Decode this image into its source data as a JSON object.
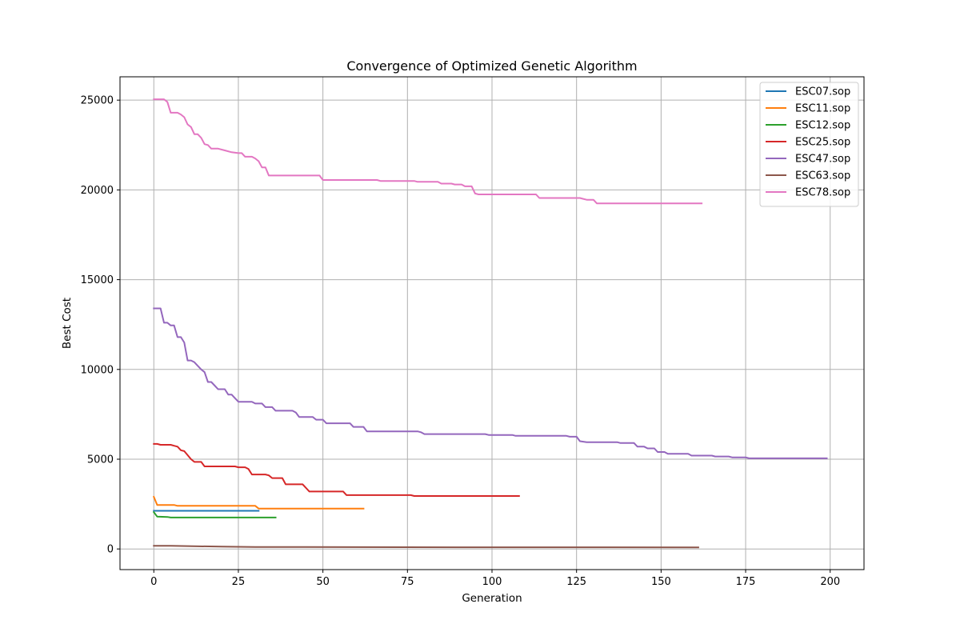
{
  "chart_data": {
    "type": "line",
    "title": "Convergence of Optimized Genetic Algorithm",
    "xlabel": "Generation",
    "ylabel": "Best Cost",
    "xlim": [
      -10,
      210
    ],
    "ylim": [
      -1150,
      26300
    ],
    "xticks": [
      0,
      25,
      50,
      75,
      100,
      125,
      150,
      175,
      200
    ],
    "yticks": [
      0,
      5000,
      10000,
      15000,
      20000,
      25000
    ],
    "grid": true,
    "legend_position": "top-right",
    "series": [
      {
        "name": "ESC07.sop",
        "color": "#1f77b4",
        "points": [
          [
            0,
            2125
          ],
          [
            31,
            2125
          ]
        ]
      },
      {
        "name": "ESC11.sop",
        "color": "#ff7f0e",
        "points": [
          [
            0,
            2900
          ],
          [
            1,
            2450
          ],
          [
            6,
            2450
          ],
          [
            7,
            2400
          ],
          [
            30,
            2400
          ],
          [
            31,
            2250
          ],
          [
            62,
            2250
          ]
        ]
      },
      {
        "name": "ESC12.sop",
        "color": "#2ca02c",
        "points": [
          [
            0,
            2050
          ],
          [
            1,
            1800
          ],
          [
            4,
            1780
          ],
          [
            5,
            1750
          ],
          [
            36,
            1750
          ]
        ]
      },
      {
        "name": "ESC25.sop",
        "color": "#d62728",
        "points": [
          [
            0,
            5850
          ],
          [
            1,
            5850
          ],
          [
            2,
            5800
          ],
          [
            5,
            5800
          ],
          [
            6,
            5750
          ],
          [
            7,
            5700
          ],
          [
            8,
            5500
          ],
          [
            9,
            5450
          ],
          [
            11,
            5000
          ],
          [
            12,
            4850
          ],
          [
            14,
            4850
          ],
          [
            15,
            4600
          ],
          [
            24,
            4600
          ],
          [
            25,
            4550
          ],
          [
            27,
            4550
          ],
          [
            28,
            4450
          ],
          [
            29,
            4150
          ],
          [
            33,
            4150
          ],
          [
            34,
            4100
          ],
          [
            35,
            3950
          ],
          [
            38,
            3950
          ],
          [
            39,
            3600
          ],
          [
            44,
            3600
          ],
          [
            46,
            3200
          ],
          [
            56,
            3200
          ],
          [
            57,
            3000
          ],
          [
            76,
            3000
          ],
          [
            77,
            2950
          ],
          [
            108,
            2950
          ]
        ]
      },
      {
        "name": "ESC47.sop",
        "color": "#9467bd",
        "points": [
          [
            0,
            13400
          ],
          [
            2,
            13400
          ],
          [
            3,
            12600
          ],
          [
            4,
            12600
          ],
          [
            5,
            12450
          ],
          [
            6,
            12450
          ],
          [
            7,
            11800
          ],
          [
            8,
            11800
          ],
          [
            9,
            11500
          ],
          [
            10,
            10500
          ],
          [
            11,
            10500
          ],
          [
            12,
            10400
          ],
          [
            13,
            10200
          ],
          [
            14,
            10000
          ],
          [
            15,
            9850
          ],
          [
            16,
            9300
          ],
          [
            17,
            9300
          ],
          [
            18,
            9100
          ],
          [
            19,
            8900
          ],
          [
            21,
            8900
          ],
          [
            22,
            8600
          ],
          [
            23,
            8600
          ],
          [
            24,
            8400
          ],
          [
            25,
            8200
          ],
          [
            29,
            8200
          ],
          [
            30,
            8100
          ],
          [
            32,
            8100
          ],
          [
            33,
            7900
          ],
          [
            35,
            7900
          ],
          [
            36,
            7700
          ],
          [
            41,
            7700
          ],
          [
            42,
            7600
          ],
          [
            43,
            7350
          ],
          [
            47,
            7350
          ],
          [
            48,
            7200
          ],
          [
            49,
            7200
          ],
          [
            50,
            7200
          ],
          [
            51,
            7000
          ],
          [
            58,
            7000
          ],
          [
            59,
            6800
          ],
          [
            62,
            6800
          ],
          [
            63,
            6550
          ],
          [
            78,
            6550
          ],
          [
            79,
            6500
          ],
          [
            80,
            6400
          ],
          [
            98,
            6400
          ],
          [
            99,
            6350
          ],
          [
            106,
            6350
          ],
          [
            107,
            6300
          ],
          [
            122,
            6300
          ],
          [
            123,
            6250
          ],
          [
            125,
            6250
          ],
          [
            126,
            6000
          ],
          [
            128,
            5950
          ],
          [
            137,
            5950
          ],
          [
            138,
            5900
          ],
          [
            142,
            5900
          ],
          [
            143,
            5700
          ],
          [
            145,
            5700
          ],
          [
            146,
            5600
          ],
          [
            148,
            5600
          ],
          [
            149,
            5400
          ],
          [
            151,
            5400
          ],
          [
            152,
            5300
          ],
          [
            158,
            5300
          ],
          [
            159,
            5200
          ],
          [
            165,
            5200
          ],
          [
            166,
            5150
          ],
          [
            170,
            5150
          ],
          [
            171,
            5100
          ],
          [
            175,
            5100
          ],
          [
            176,
            5050
          ],
          [
            199,
            5050
          ]
        ]
      },
      {
        "name": "ESC63.sop",
        "color": "#8c564b",
        "points": [
          [
            0,
            180
          ],
          [
            5,
            180
          ],
          [
            10,
            160
          ],
          [
            20,
            130
          ],
          [
            30,
            110
          ],
          [
            60,
            100
          ],
          [
            90,
            95
          ],
          [
            161,
            90
          ]
        ]
      },
      {
        "name": "ESC78.sop",
        "color": "#e377c2",
        "points": [
          [
            0,
            25050
          ],
          [
            3,
            25050
          ],
          [
            4,
            24900
          ],
          [
            5,
            24300
          ],
          [
            7,
            24300
          ],
          [
            8,
            24200
          ],
          [
            9,
            24050
          ],
          [
            10,
            23650
          ],
          [
            11,
            23500
          ],
          [
            12,
            23100
          ],
          [
            13,
            23100
          ],
          [
            14,
            22900
          ],
          [
            15,
            22550
          ],
          [
            16,
            22500
          ],
          [
            17,
            22300
          ],
          [
            19,
            22300
          ],
          [
            21,
            22200
          ],
          [
            23,
            22100
          ],
          [
            25,
            22050
          ],
          [
            26,
            22050
          ],
          [
            27,
            21850
          ],
          [
            29,
            21850
          ],
          [
            30,
            21750
          ],
          [
            31,
            21600
          ],
          [
            32,
            21250
          ],
          [
            33,
            21250
          ],
          [
            34,
            20800
          ],
          [
            49,
            20800
          ],
          [
            50,
            20550
          ],
          [
            56,
            20550
          ],
          [
            57,
            20550
          ],
          [
            66,
            20550
          ],
          [
            67,
            20500
          ],
          [
            76,
            20500
          ],
          [
            77,
            20500
          ],
          [
            78,
            20450
          ],
          [
            84,
            20450
          ],
          [
            85,
            20350
          ],
          [
            88,
            20350
          ],
          [
            89,
            20300
          ],
          [
            91,
            20300
          ],
          [
            92,
            20200
          ],
          [
            94,
            20200
          ],
          [
            95,
            19800
          ],
          [
            96,
            19750
          ],
          [
            113,
            19750
          ],
          [
            114,
            19550
          ],
          [
            126,
            19550
          ],
          [
            127,
            19500
          ],
          [
            128,
            19450
          ],
          [
            130,
            19450
          ],
          [
            131,
            19250
          ],
          [
            162,
            19250
          ]
        ]
      }
    ]
  }
}
